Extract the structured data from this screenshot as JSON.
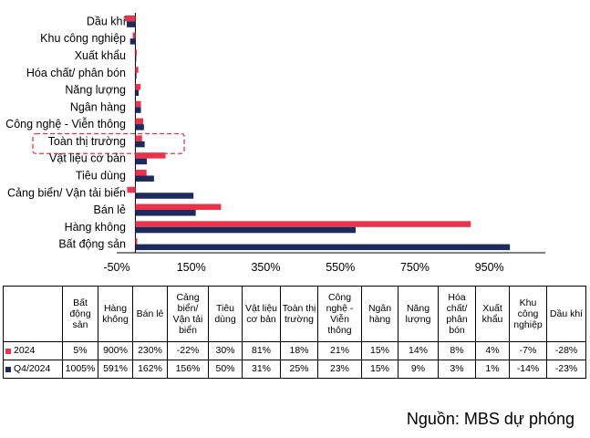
{
  "chart_data": {
    "type": "bar",
    "orientation": "horizontal",
    "categories": [
      "Bất động sản",
      "Hàng không",
      "Bán lẻ",
      "Cảng biển/ Vận tải biển",
      "Tiêu dùng",
      "Vật liệu cơ bản",
      "Toàn thị trường",
      "Công nghệ - Viễn thông",
      "Ngân hàng",
      "Năng lượng",
      "Hóa chất/ phân bón",
      "Xuất khẩu",
      "Khu công nghiệp",
      "Dầu khí"
    ],
    "series": [
      {
        "name": "2024",
        "color": "#e8334a",
        "values": [
          5,
          900,
          230,
          -22,
          30,
          81,
          18,
          21,
          15,
          14,
          8,
          4,
          -7,
          -28
        ]
      },
      {
        "name": "Q4/2024",
        "color": "#1c2a5e",
        "values": [
          1005,
          591,
          162,
          156,
          50,
          31,
          25,
          23,
          15,
          9,
          3,
          1,
          -14,
          -23
        ]
      }
    ],
    "x_ticks": [
      "-50%",
      "150%",
      "350%",
      "550%",
      "750%",
      "950%"
    ],
    "xlim": [
      -50,
      1100
    ],
    "highlighted_category": "Toàn thị trường",
    "grid": false
  },
  "table": {
    "headers": [
      "Bất động sản",
      "Hàng không",
      "Bán lẻ",
      "Cảng biển/ Vận tải biển",
      "Tiêu dùng",
      "Vật liệu cơ bản",
      "Toàn thị trường",
      "Công nghệ - Viễn thông",
      "Ngân hàng",
      "Năng lượng",
      "Hóa chất/ phân bón",
      "Xuất khẩu",
      "Khu công nghiệp",
      "Dầu khí"
    ],
    "rows": [
      {
        "label": "2024",
        "color": "#e8334a",
        "cells": [
          "5%",
          "900%",
          "230%",
          "-22%",
          "30%",
          "81%",
          "18%",
          "21%",
          "15%",
          "14%",
          "8%",
          "4%",
          "-7%",
          "-28%"
        ]
      },
      {
        "label": "Q4/2024",
        "color": "#1c2a5e",
        "cells": [
          "1005%",
          "591%",
          "162%",
          "156%",
          "50%",
          "31%",
          "25%",
          "23%",
          "15%",
          "9%",
          "3%",
          "1%",
          "-14%",
          "-23%"
        ]
      }
    ]
  },
  "source": "Nguồn: MBS dự phóng"
}
